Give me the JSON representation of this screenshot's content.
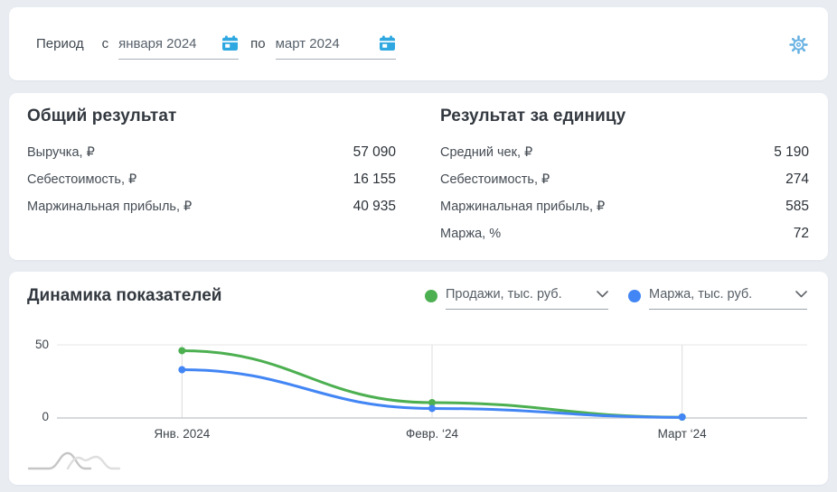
{
  "period_bar": {
    "label": "Период",
    "from_prefix": "с",
    "from_value": "января 2024",
    "to_prefix": "по",
    "to_value": "март 2024"
  },
  "summary_total": {
    "title": "Общий результат",
    "rows": [
      {
        "label": "Выручка, ₽",
        "value": "57 090"
      },
      {
        "label": "Себестоимость, ₽",
        "value": "16 155"
      },
      {
        "label": "Маржинальная прибыль, ₽",
        "value": "40 935"
      }
    ]
  },
  "summary_unit": {
    "title": "Результат за единицу",
    "rows": [
      {
        "label": "Средний чек, ₽",
        "value": "5 190"
      },
      {
        "label": "Себестоимость, ₽",
        "value": "274"
      },
      {
        "label": "Маржинальная прибыль, ₽",
        "value": "585"
      },
      {
        "label": "Маржа, %",
        "value": "72"
      }
    ]
  },
  "dynamics": {
    "title": "Динамика показателей"
  },
  "chart_data": {
    "type": "line",
    "categories": [
      "Янв. 2024",
      "Февр. ‘24",
      "Март ‘24"
    ],
    "series": [
      {
        "name": "Продажи, тыс. руб.",
        "color": "#4caf50",
        "values": [
          46,
          10.5,
          0.5
        ]
      },
      {
        "name": "Маржа, тыс. руб.",
        "color": "#4285f4",
        "values": [
          33,
          6.5,
          0.4
        ]
      }
    ],
    "ylim": [
      0,
      50
    ],
    "yticks": [
      0,
      50
    ],
    "grid": "horizontal line at 50, baseline at 0, vertical gridline per category",
    "legend_position": "top-right as two underlined dropdown selectors with colored dots"
  },
  "icons": {
    "calendar": "calendar-icon (blue filled calendar glyph)",
    "gear": "gear-icon (light blue outline cog)",
    "chevron": "chevron-down-icon (gray v)",
    "minimap": "trend-minimap-icon (gray overlapping humps sparkline)"
  },
  "colors": {
    "background": "#e9edf2",
    "panel": "#ffffff",
    "accent_blue": "#2fa8e1",
    "series_green": "#4caf50",
    "series_blue": "#4285f4"
  }
}
